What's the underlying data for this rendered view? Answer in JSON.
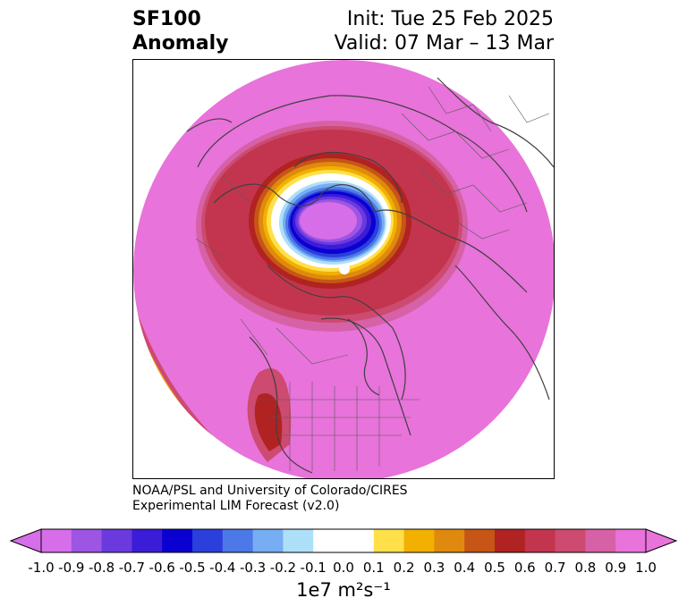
{
  "header": {
    "title_line1": "SF100",
    "title_line2": "Anomaly",
    "init": "Init: Tue 25 Feb 2025",
    "valid": "Valid: 07 Mar – 13 Mar"
  },
  "credit": {
    "line1": "NOAA/PSL and University of Colorado/CIRES",
    "line2": "Experimental LIM Forecast (v2.0)"
  },
  "colorbar": {
    "ticks": [
      "-1.0",
      "-0.9",
      "-0.8",
      "-0.7",
      "-0.6",
      "-0.5",
      "-0.4",
      "-0.3",
      "-0.2",
      "-0.1",
      "0.0",
      "0.1",
      "0.2",
      "0.3",
      "0.4",
      "0.5",
      "0.6",
      "0.7",
      "0.8",
      "0.9",
      "1.0"
    ],
    "colors": [
      "#d76ee9",
      "#9d55e3",
      "#6b3adf",
      "#3b1dd8",
      "#0a00d1",
      "#2a3fdc",
      "#4c78e8",
      "#77adf2",
      "#addff9",
      "#ffffff",
      "#ffffff",
      "#ffe04a",
      "#f2b000",
      "#df8a0f",
      "#c65516",
      "#b12222",
      "#c3354e",
      "#cd4a70",
      "#d761a7",
      "#e873da"
    ],
    "units": "1e7 m²s⁻¹",
    "extend_low_color": "#d76ee9",
    "extend_high_color": "#e873da"
  },
  "map": {
    "projection": "north polar stereographic",
    "background_field_color": "#e873da"
  }
}
